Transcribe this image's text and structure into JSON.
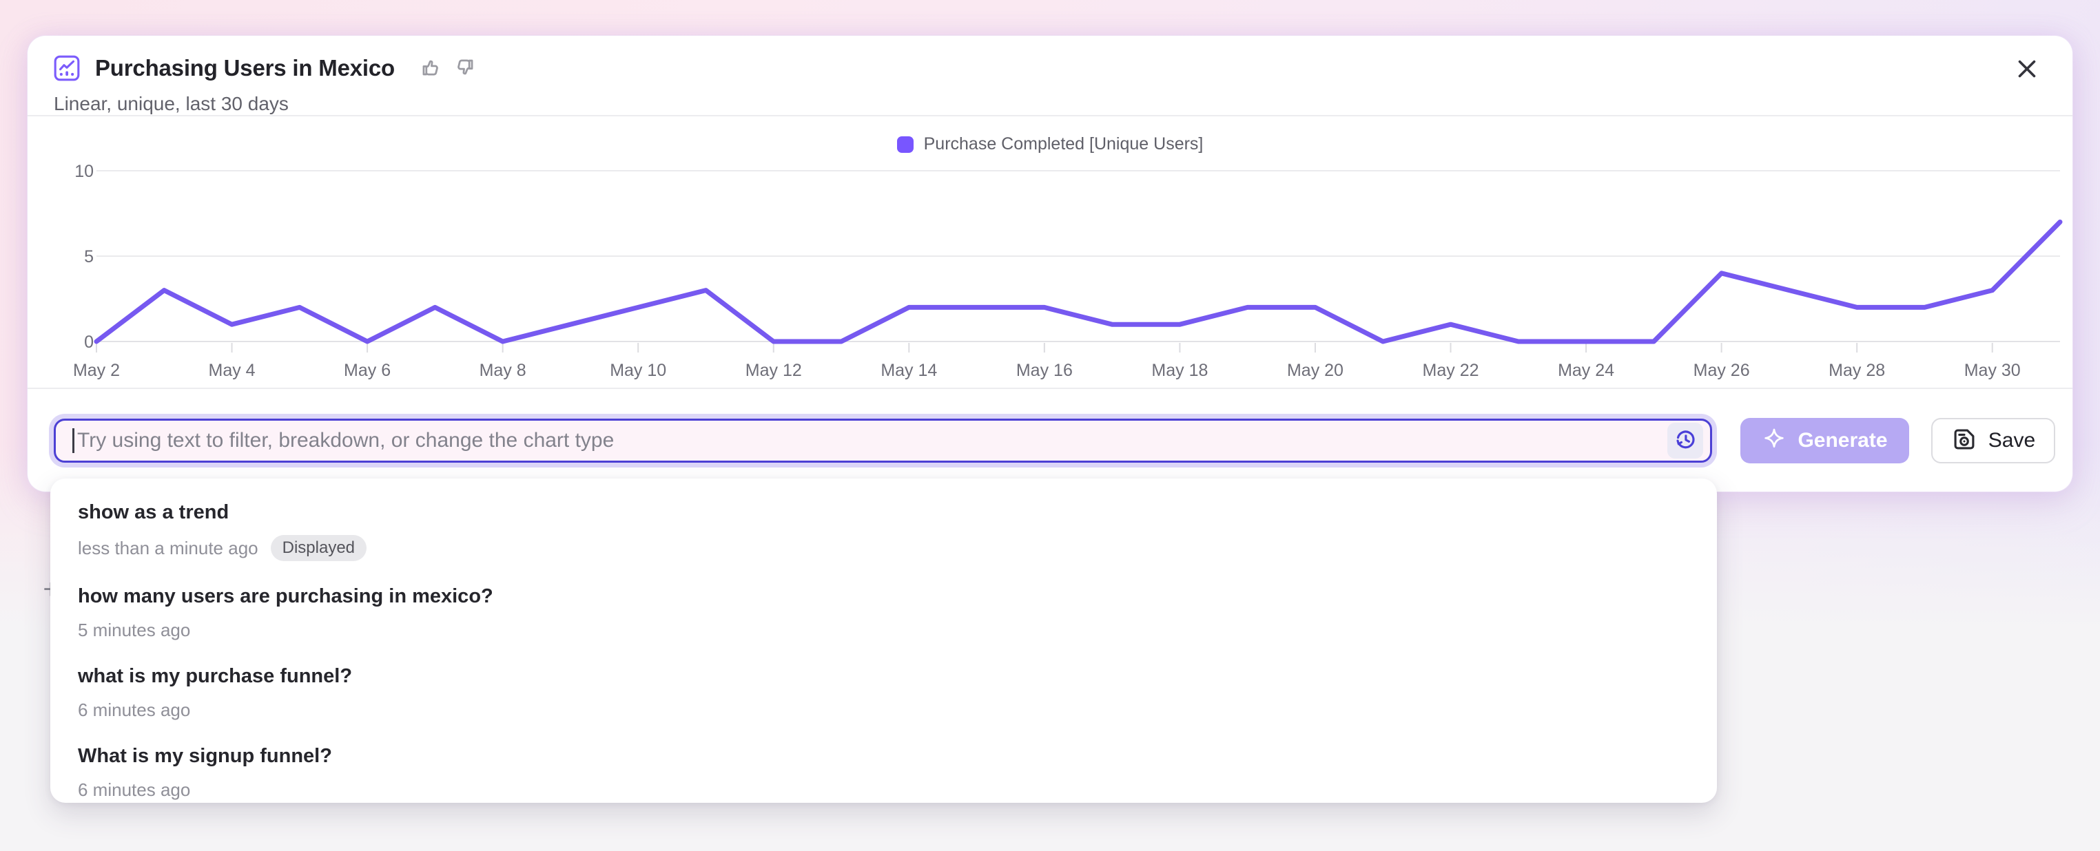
{
  "card": {
    "title": "Purchasing Users in Mexico",
    "subtitle": "Linear, unique, last 30 days"
  },
  "legend": {
    "label": "Purchase Completed [Unique Users]"
  },
  "chart_data": {
    "type": "line",
    "title": "Purchasing Users in Mexico",
    "x": [
      "May 2",
      "May 3",
      "May 4",
      "May 5",
      "May 6",
      "May 7",
      "May 8",
      "May 9",
      "May 10",
      "May 11",
      "May 12",
      "May 13",
      "May 14",
      "May 15",
      "May 16",
      "May 17",
      "May 18",
      "May 19",
      "May 20",
      "May 21",
      "May 22",
      "May 23",
      "May 24",
      "May 25",
      "May 26",
      "May 27",
      "May 28",
      "May 29",
      "May 30",
      "May 31"
    ],
    "x_tick_labels": [
      "May 2",
      "May 4",
      "May 6",
      "May 8",
      "May 10",
      "May 12",
      "May 14",
      "May 16",
      "May 18",
      "May 20",
      "May 22",
      "May 24",
      "May 26",
      "May 28",
      "May 30"
    ],
    "series": [
      {
        "name": "Purchase Completed [Unique Users]",
        "color": "#7659F0",
        "values": [
          0,
          3,
          1,
          2,
          0,
          2,
          0,
          1,
          2,
          3,
          0,
          0,
          2,
          2,
          2,
          1,
          1,
          2,
          2,
          0,
          1,
          0,
          0,
          0,
          4,
          3,
          2,
          2,
          3,
          7
        ]
      }
    ],
    "ylim": [
      0,
      10
    ],
    "yticks": [
      0,
      5,
      10
    ],
    "grid": "horizontal",
    "legend_position": "top-center"
  },
  "ai_bar": {
    "placeholder": "Try using text to filter, breakdown, or change the chart type",
    "generate_label": "Generate",
    "save_label": "Save"
  },
  "history": {
    "items": [
      {
        "query": "show as a trend",
        "time": "less than a minute ago",
        "badge": "Displayed"
      },
      {
        "query": "how many users are purchasing in mexico?",
        "time": "5 minutes ago"
      },
      {
        "query": "what is my purchase funnel?",
        "time": "6 minutes ago"
      },
      {
        "query": "What is my signup funnel?",
        "time": "6 minutes ago"
      }
    ]
  },
  "background": {
    "plus_glyph": "+"
  },
  "icons": {
    "chart-type-icon": "line-chart-in-rounded-square",
    "thumb-up-icon": "thumbs-up-outline",
    "thumb-down-icon": "thumbs-down-outline",
    "close-icon": "x-cross",
    "history-icon": "clock-with-counterclockwise-arrow",
    "sparkle-icon": "four-point-star",
    "save-icon": "floppy-disk",
    "plus-icon": "+"
  },
  "colors": {
    "accent": "#7856FF",
    "line": "#7659F0",
    "input_border": "#4C40D4",
    "input_ring": "#DDD7F8",
    "input_bg": "#FDF3F9",
    "generate_bg": "#B6A9F3",
    "grid": "#EAEAED",
    "axis_text": "#6E6E78"
  }
}
